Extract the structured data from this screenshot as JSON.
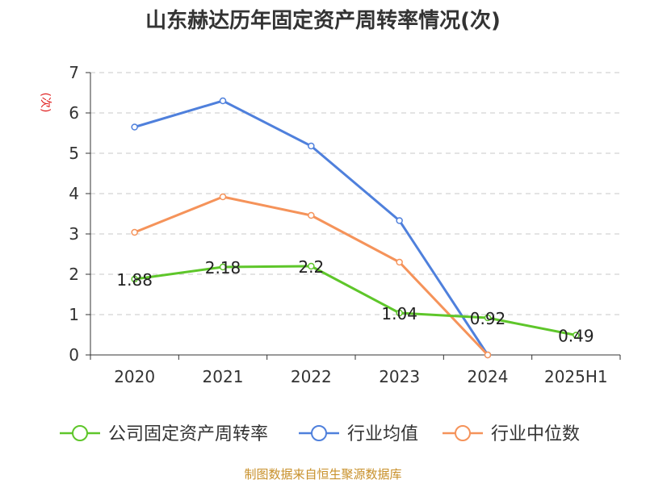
{
  "chart_data": {
    "type": "line",
    "title": "山东赫达历年固定资产周转率情况(次)",
    "ylabel": "(次)",
    "xlabel": "",
    "categories": [
      "2020",
      "2021",
      "2022",
      "2023",
      "2024",
      "2025H1"
    ],
    "y_ticks": [
      "0",
      "1",
      "2",
      "3",
      "4",
      "5",
      "6",
      "7"
    ],
    "ylim": [
      0,
      7
    ],
    "grid": "horizontal-dashed",
    "legend_position": "bottom",
    "series": [
      {
        "name": "公司固定资产周转率",
        "color": "#5ec62a",
        "values": [
          1.88,
          2.18,
          2.2,
          1.04,
          0.92,
          0.49
        ],
        "labels": [
          "1.88",
          "2.18",
          "2.2",
          "1.04",
          "0.92",
          "0.49"
        ]
      },
      {
        "name": "行业均值",
        "color": "#4f80dc",
        "values": [
          5.65,
          6.3,
          5.18,
          3.33,
          0.0,
          null
        ]
      },
      {
        "name": "行业中位数",
        "color": "#f5935a",
        "values": [
          3.04,
          3.92,
          3.46,
          2.3,
          0.0,
          null
        ]
      }
    ],
    "source": "制图数据来自恒生聚源数据库"
  }
}
